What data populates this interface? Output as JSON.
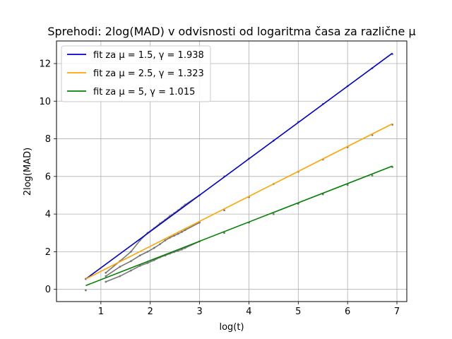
{
  "chart_data": {
    "type": "line",
    "title": "Sprehodi: 2log(MAD) v odvisnosti od logaritma časa za različne μ",
    "xlabel": "log(t)",
    "ylabel": "2log(MAD)",
    "xlim": [
      0.1,
      7.2
    ],
    "ylim": [
      -0.65,
      13.2
    ],
    "xticks": [
      1,
      2,
      3,
      4,
      5,
      6,
      7
    ],
    "yticks": [
      0,
      2,
      4,
      6,
      8,
      10,
      12
    ],
    "grid": true,
    "legend_position": "top-left",
    "series": [
      {
        "name": "fit za μ = 1.5, γ = 1.938",
        "color": "#0000cd",
        "fit": [
          [
            0.693,
            0.55
          ],
          [
            6.908,
            12.55
          ]
        ],
        "scatter": [
          [
            0.693,
            0.55
          ],
          [
            1.099,
            0.88
          ],
          [
            1.386,
            1.5
          ],
          [
            1.609,
            2.0
          ],
          [
            1.792,
            2.6
          ],
          [
            1.946,
            3.0
          ],
          [
            2.079,
            3.25
          ],
          [
            2.197,
            3.5
          ],
          [
            2.303,
            3.7
          ],
          [
            2.398,
            3.9
          ],
          [
            2.485,
            4.05
          ],
          [
            2.565,
            4.2
          ],
          [
            2.639,
            4.35
          ],
          [
            2.708,
            4.5
          ],
          [
            3.0,
            5.0
          ],
          [
            3.5,
            6.0
          ],
          [
            4.0,
            6.95
          ],
          [
            4.5,
            7.9
          ],
          [
            5.0,
            8.9
          ],
          [
            5.5,
            9.85
          ],
          [
            6.0,
            10.8
          ],
          [
            6.5,
            11.75
          ],
          [
            6.908,
            12.5
          ]
        ]
      },
      {
        "name": "fit za μ = 2.5, γ = 1.323",
        "color": "#ffa500",
        "fit": [
          [
            0.693,
            0.55
          ],
          [
            6.908,
            8.8
          ]
        ],
        "scatter": [
          [
            0.693,
            0.55
          ],
          [
            1.099,
            0.7
          ],
          [
            1.386,
            1.2
          ],
          [
            1.609,
            1.5
          ],
          [
            1.792,
            1.8
          ],
          [
            1.946,
            2.0
          ],
          [
            2.079,
            2.2
          ],
          [
            2.197,
            2.4
          ],
          [
            2.303,
            2.6
          ],
          [
            2.398,
            2.75
          ],
          [
            2.485,
            2.85
          ],
          [
            2.565,
            2.95
          ],
          [
            2.639,
            3.05
          ],
          [
            2.708,
            3.15
          ],
          [
            3.0,
            3.55
          ],
          [
            3.5,
            4.2
          ],
          [
            4.0,
            4.9
          ],
          [
            4.5,
            5.6
          ],
          [
            5.0,
            6.25
          ],
          [
            5.5,
            6.9
          ],
          [
            6.0,
            7.55
          ],
          [
            6.5,
            8.2
          ],
          [
            6.908,
            8.75
          ]
        ]
      },
      {
        "name": "fit za μ = 5, γ = 1.015",
        "color": "#008000",
        "fit": [
          [
            0.693,
            0.2
          ],
          [
            6.908,
            6.55
          ]
        ],
        "scatter": [
          [
            0.693,
            -0.05
          ],
          [
            1.099,
            0.4
          ],
          [
            1.386,
            0.7
          ],
          [
            1.609,
            1.0
          ],
          [
            1.792,
            1.25
          ],
          [
            1.946,
            1.4
          ],
          [
            2.079,
            1.55
          ],
          [
            2.197,
            1.7
          ],
          [
            2.303,
            1.8
          ],
          [
            2.398,
            1.9
          ],
          [
            2.485,
            1.98
          ],
          [
            2.565,
            2.05
          ],
          [
            2.639,
            2.12
          ],
          [
            2.708,
            2.2
          ],
          [
            3.0,
            2.55
          ],
          [
            3.5,
            3.0
          ],
          [
            4.0,
            3.55
          ],
          [
            4.5,
            4.0
          ],
          [
            5.0,
            4.55
          ],
          [
            5.5,
            5.05
          ],
          [
            6.0,
            5.55
          ],
          [
            6.5,
            6.05
          ],
          [
            6.908,
            6.5
          ]
        ]
      }
    ]
  }
}
